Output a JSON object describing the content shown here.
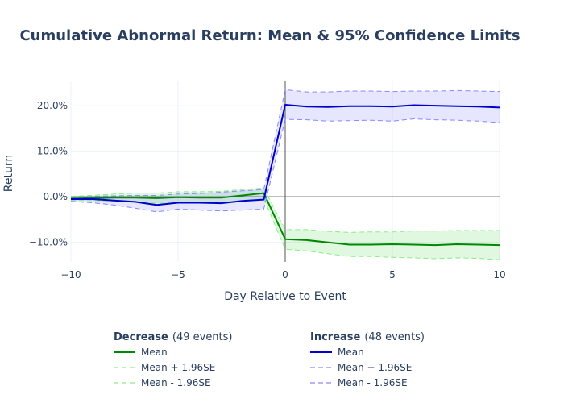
{
  "chart_data": {
    "type": "line",
    "title": "Cumulative Abnormal Return: Mean & 95% Confidence Limits",
    "xlabel": "Day Relative to Event",
    "ylabel": "Return",
    "xlim": [
      -10,
      10
    ],
    "ylim": [
      -0.143,
      0.255
    ],
    "xticks": [
      -10,
      -5,
      0,
      5,
      10
    ],
    "xtick_labels": [
      "−10",
      "−5",
      "0",
      "5",
      "10"
    ],
    "yticks": [
      -0.1,
      0,
      0.1,
      0.2
    ],
    "ytick_labels": [
      "−10.0%",
      "0.0%",
      "10.0%",
      "20.0%"
    ],
    "x": [
      -10,
      -9,
      -8,
      -7,
      -6,
      -5,
      -4,
      -3,
      -2,
      -1,
      0,
      1,
      2,
      3,
      4,
      5,
      6,
      7,
      8,
      9,
      10
    ],
    "groups": [
      {
        "name": "Decrease",
        "detail": "(49 events)",
        "line_color": "#008800",
        "band_color": "#88ee88",
        "fill_color": "rgba(0,200,0,0.12)",
        "series": [
          {
            "name": "Mean",
            "role": "mean",
            "values": [
              -0.004,
              -0.003,
              -0.002,
              -0.002,
              -0.003,
              -0.001,
              -0.002,
              -0.002,
              0.003,
              0.008,
              -0.093,
              -0.095,
              -0.1,
              -0.105,
              -0.105,
              -0.104,
              -0.105,
              -0.106,
              -0.104,
              -0.105,
              -0.106
            ]
          },
          {
            "name": "Mean + 1.96SE",
            "role": "upper",
            "values": [
              0.001,
              0.003,
              0.006,
              0.008,
              0.008,
              0.011,
              0.011,
              0.012,
              0.016,
              0.019,
              -0.072,
              -0.072,
              -0.076,
              -0.078,
              -0.077,
              -0.077,
              -0.075,
              -0.075,
              -0.074,
              -0.074,
              -0.074
            ]
          },
          {
            "name": "Mean - 1.96SE",
            "role": "lower",
            "values": [
              -0.008,
              -0.008,
              -0.01,
              -0.012,
              -0.014,
              -0.013,
              -0.014,
              -0.015,
              -0.01,
              -0.004,
              -0.115,
              -0.119,
              -0.125,
              -0.131,
              -0.131,
              -0.133,
              -0.134,
              -0.136,
              -0.134,
              -0.135,
              -0.138
            ]
          }
        ]
      },
      {
        "name": "Increase",
        "detail": "(48 events)",
        "line_color": "#0000cc",
        "band_color": "#8888ff",
        "fill_color": "rgba(80,80,255,0.14)",
        "series": [
          {
            "name": "Mean",
            "role": "mean",
            "values": [
              -0.005,
              -0.005,
              -0.008,
              -0.011,
              -0.018,
              -0.013,
              -0.013,
              -0.014,
              -0.009,
              -0.006,
              0.202,
              0.198,
              0.197,
              0.199,
              0.199,
              0.198,
              0.201,
              0.2,
              0.199,
              0.198,
              0.196
            ]
          },
          {
            "name": "Mean + 1.96SE",
            "role": "upper",
            "values": [
              0.0,
              0.001,
              0.002,
              0.003,
              0.003,
              0.006,
              0.007,
              0.01,
              0.013,
              0.016,
              0.235,
              0.23,
              0.23,
              0.232,
              0.232,
              0.231,
              0.232,
              0.232,
              0.233,
              0.232,
              0.231
            ]
          },
          {
            "name": "Mean - 1.96SE",
            "role": "lower",
            "values": [
              -0.01,
              -0.013,
              -0.018,
              -0.025,
              -0.033,
              -0.027,
              -0.029,
              -0.031,
              -0.029,
              -0.027,
              0.17,
              0.169,
              0.166,
              0.167,
              0.168,
              0.166,
              0.171,
              0.169,
              0.168,
              0.166,
              0.163
            ]
          }
        ]
      }
    ],
    "vline": 0,
    "hline": 0
  }
}
